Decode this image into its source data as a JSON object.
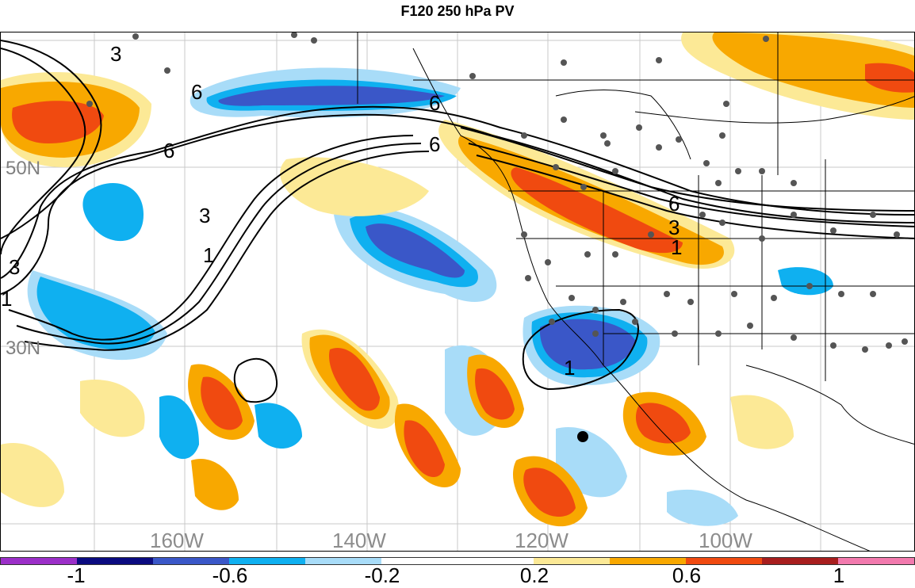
{
  "title": "F120 250 hPa PV",
  "map": {
    "lat_labels": [
      "50N",
      "30N"
    ],
    "lon_labels": [
      "160W",
      "140W",
      "120W",
      "100W"
    ],
    "contour_labels": [
      "3",
      "6",
      "6",
      "3",
      "1",
      "3",
      "1",
      "6",
      "6",
      "6",
      "3",
      "1",
      "1"
    ]
  },
  "colorbar": {
    "colors": [
      "#9b2fc8",
      "#0b0b80",
      "#3a57c8",
      "#0fb0f0",
      "#a8dcf8",
      "#ffffff",
      "#ffffff",
      "#fce996",
      "#f8a800",
      "#f04a10",
      "#a81e1e",
      "#f27aae"
    ],
    "tick_labels": [
      "-1",
      "-0.6",
      "-0.2",
      "0.2",
      "0.6",
      "1"
    ]
  }
}
